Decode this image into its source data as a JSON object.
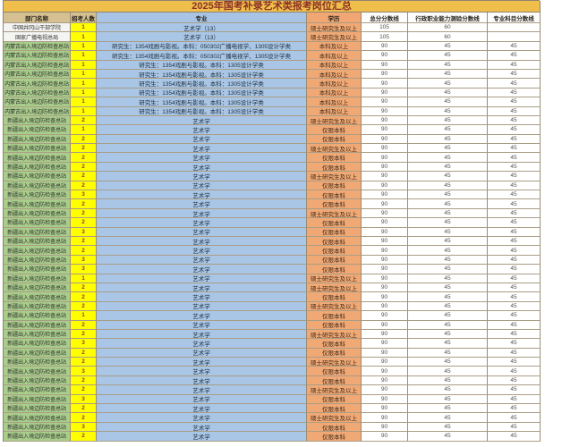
{
  "title": "2025年国考补录艺术类报考岗位汇总",
  "colors": {
    "title_bg": "#efbe4b",
    "title_text": "#8b3226",
    "header_tan": "#d4c091",
    "dept_green": "#a9ce8c",
    "dept_light": "#f4f4f2",
    "count_yellow": "#ffff00",
    "count_text_red": "#9e3b2d",
    "major_blue": "#a9c6e6",
    "edu_salmon": "#f0a875",
    "grid_line": "#9a8d77"
  },
  "table": {
    "columns": [
      "部门名称",
      "招考人数",
      "专业",
      "学历",
      "总分分数线",
      "行政职业能力测验分数线",
      "专业科目分数线"
    ],
    "special_depts": [
      "中国井冈山干部学院",
      "国家广播电视总局"
    ],
    "rows": [
      [
        "中国井冈山干部学院",
        "1",
        "艺术学（13）",
        "硕士研究生及以上",
        "105",
        "60",
        ""
      ],
      [
        "国家广播电视总局",
        "1",
        "艺术学（13）",
        "硕士研究生及以上",
        "105",
        "60",
        ""
      ],
      [
        "内蒙古出入境边防检查总站",
        "1",
        "研究生：1354戏剧与影视。本科：050302广播电视学、1305设计学类",
        "本科及以上",
        "90",
        "45",
        "45"
      ],
      [
        "内蒙古出入境边防检查总站",
        "1",
        "研究生：1354戏剧与影视。本科：050302广播电视学、1305设计学类",
        "本科及以上",
        "90",
        "45",
        "45"
      ],
      [
        "内蒙古出入境边防检查总站",
        "1",
        "研究生：1354戏剧与影视。本科：1305设计学类",
        "本科及以上",
        "90",
        "45",
        "45"
      ],
      [
        "内蒙古出入境边防检查总站",
        "1",
        "研究生：1354戏剧与影视。本科：1305设计学类",
        "本科及以上",
        "90",
        "45",
        "45"
      ],
      [
        "内蒙古出入境边防检查总站",
        "1",
        "研究生：1354戏剧与影视。本科：1305设计学类",
        "本科及以上",
        "90",
        "45",
        "45"
      ],
      [
        "内蒙古出入境边防检查总站",
        "1",
        "研究生：1354戏剧与影视。本科：1305设计学类",
        "本科及以上",
        "90",
        "45",
        "45"
      ],
      [
        "内蒙古出入境边防检查总站",
        "1",
        "研究生：1354戏剧与影视。本科：1305设计学类",
        "本科及以上",
        "90",
        "45",
        "45"
      ],
      [
        "内蒙古出入境边防检查总站",
        "1",
        "研究生：1354戏剧与影视。本科：1305设计学类",
        "本科及以上",
        "90",
        "45",
        "45"
      ],
      [
        "新疆出入境边防检查总站",
        "2",
        "艺术学",
        "硕士研究生及以上",
        "90",
        "45",
        "45"
      ],
      [
        "新疆出入境边防检查总站",
        "1",
        "艺术学",
        "仅限本科",
        "90",
        "45",
        "45"
      ],
      [
        "新疆出入境边防检查总站",
        "2",
        "艺术学",
        "仅限本科",
        "90",
        "45",
        "45"
      ],
      [
        "新疆出入境边防检查总站",
        "2",
        "艺术学",
        "硕士研究生及以上",
        "90",
        "45",
        "45"
      ],
      [
        "新疆出入境边防检查总站",
        "2",
        "艺术学",
        "仅限本科",
        "90",
        "45",
        "45"
      ],
      [
        "新疆出入境边防检查总站",
        "2",
        "艺术学",
        "仅限本科",
        "90",
        "45",
        "45"
      ],
      [
        "新疆出入境边防检查总站",
        "2",
        "艺术学",
        "硕士研究生及以上",
        "90",
        "45",
        "45"
      ],
      [
        "新疆出入境边防检查总站",
        "2",
        "艺术学",
        "仅限本科",
        "90",
        "45",
        "45"
      ],
      [
        "新疆出入境边防检查总站",
        "3",
        "艺术学",
        "仅限本科",
        "90",
        "45",
        "45"
      ],
      [
        "新疆出入境边防检查总站",
        "2",
        "艺术学",
        "仅限本科",
        "90",
        "45",
        "45"
      ],
      [
        "新疆出入境边防检查总站",
        "2",
        "艺术学",
        "硕士研究生及以上",
        "90",
        "45",
        "45"
      ],
      [
        "新疆出入境边防检查总站",
        "2",
        "艺术学",
        "仅限本科",
        "90",
        "45",
        "45"
      ],
      [
        "新疆出入境边防检查总站",
        "3",
        "艺术学",
        "仅限本科",
        "90",
        "45",
        "45"
      ],
      [
        "新疆出入境边防检查总站",
        "2",
        "艺术学",
        "仅限本科",
        "90",
        "45",
        "45"
      ],
      [
        "新疆出入境边防检查总站",
        "2",
        "艺术学",
        "仅限本科",
        "90",
        "45",
        "45"
      ],
      [
        "新疆出入境边防检查总站",
        "3",
        "艺术学",
        "仅限本科",
        "90",
        "45",
        "45"
      ],
      [
        "新疆出入境边防检查总站",
        "3",
        "艺术学",
        "仅限本科",
        "90",
        "45",
        "45"
      ],
      [
        "新疆出入境边防检查总站",
        "1",
        "艺术学",
        "硕士研究生及以上",
        "90",
        "45",
        "45"
      ],
      [
        "新疆出入境边防检查总站",
        "2",
        "艺术学",
        "硕士研究生及以上",
        "90",
        "45",
        "45"
      ],
      [
        "新疆出入境边防检查总站",
        "2",
        "艺术学",
        "仅限本科",
        "90",
        "45",
        "45"
      ],
      [
        "新疆出入境边防检查总站",
        "2",
        "艺术学",
        "硕士研究生及以上",
        "90",
        "45",
        "45"
      ],
      [
        "新疆出入境边防检查总站",
        "1",
        "艺术学",
        "仅限本科",
        "90",
        "45",
        "45"
      ],
      [
        "新疆出入境边防检查总站",
        "2",
        "艺术学",
        "仅限本科",
        "90",
        "45",
        "45"
      ],
      [
        "新疆出入境边防检查总站",
        "2",
        "艺术学",
        "硕士研究生及以上",
        "90",
        "45",
        "45"
      ],
      [
        "新疆出入境边防检查总站",
        "3",
        "艺术学",
        "仅限本科",
        "90",
        "45",
        "45"
      ],
      [
        "新疆出入境边防检查总站",
        "2",
        "艺术学",
        "仅限本科",
        "90",
        "45",
        "45"
      ],
      [
        "新疆出入境边防检查总站",
        "2",
        "艺术学",
        "硕士研究生及以上",
        "90",
        "45",
        "45"
      ],
      [
        "新疆出入境边防检查总站",
        "3",
        "艺术学",
        "仅限本科",
        "90",
        "45",
        "45"
      ],
      [
        "新疆出入境边防检查总站",
        "2",
        "艺术学",
        "仅限本科",
        "90",
        "45",
        "45"
      ],
      [
        "新疆出入境边防检查总站",
        "2",
        "艺术学",
        "硕士研究生及以上",
        "90",
        "45",
        "45"
      ],
      [
        "新疆出入境边防检查总站",
        "3",
        "艺术学",
        "仅限本科",
        "90",
        "45",
        "45"
      ],
      [
        "新疆出入境边防检查总站",
        "2",
        "艺术学",
        "仅限本科",
        "90",
        "45",
        "45"
      ],
      [
        "新疆出入境边防检查总站",
        "2",
        "艺术学",
        "硕士研究生及以上",
        "90",
        "45",
        "45"
      ],
      [
        "新疆出入境边防检查总站",
        "3",
        "艺术学",
        "仅限本科",
        "90",
        "45",
        "45"
      ],
      [
        "新疆出入境边防检查总站",
        "2",
        "艺术学",
        "仅限本科",
        "90",
        "45",
        "45"
      ]
    ]
  }
}
